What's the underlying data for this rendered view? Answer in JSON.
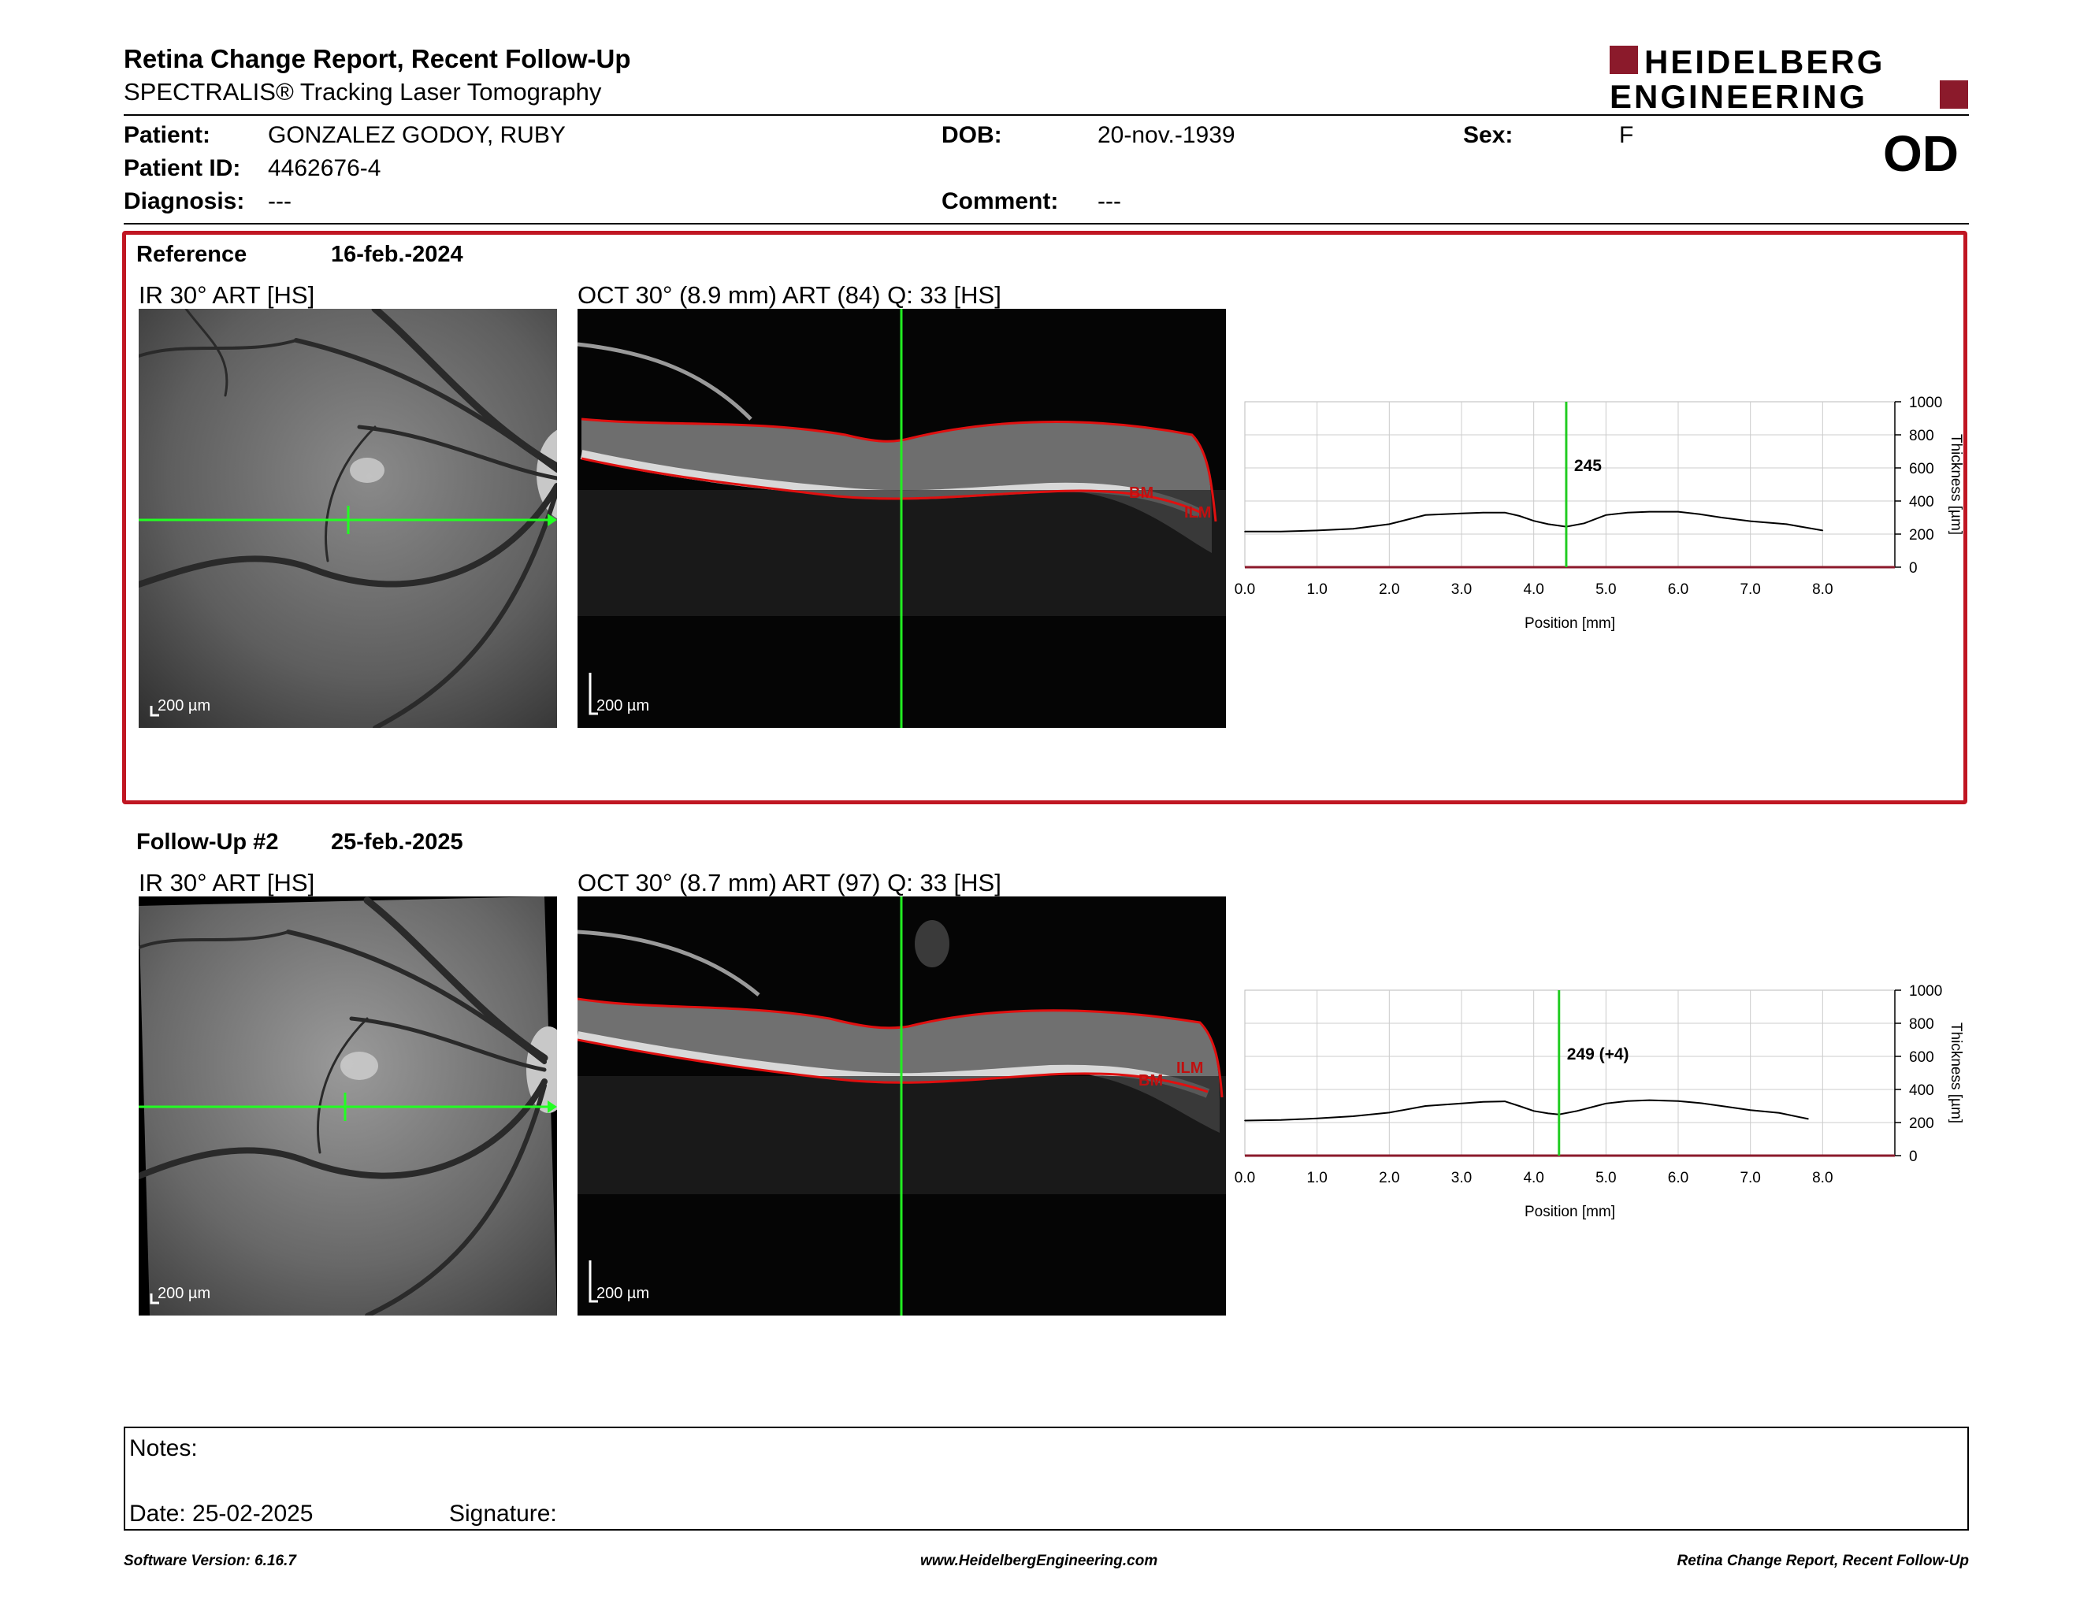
{
  "header": {
    "title": "Retina Change Report, Recent Follow-Up",
    "subtitle": "SPECTRALIS® Tracking Laser Tomography",
    "logo_line1": "HEIDELBERG",
    "logo_line2": "ENGINEERING",
    "brand_color": "#8b1a2b"
  },
  "patient": {
    "patient_label": "Patient:",
    "patient_value": "GONZALEZ GODOY, RUBY",
    "id_label": "Patient ID:",
    "id_value": "4462676-4",
    "diagnosis_label": "Diagnosis:",
    "diagnosis_value": "---",
    "dob_label": "DOB:",
    "dob_value": "20-nov.-1939",
    "comment_label": "Comment:",
    "comment_value": "---",
    "sex_label": "Sex:",
    "sex_value": "F",
    "eye": "OD"
  },
  "reference": {
    "label": "Reference",
    "date": "16-feb.-2024",
    "ir_title": "IR 30° ART [HS]",
    "oct_title": "OCT 30° (8.9 mm) ART (84) Q: 33 [HS]",
    "scale_label": "200 µm",
    "layer_bm": "BM",
    "layer_ilm": "ILM"
  },
  "followup": {
    "label": "Follow-Up #2",
    "date": "25-feb.-2025",
    "ir_title": "IR 30° ART [HS]",
    "oct_title": "OCT 30° (8.7 mm) ART (97) Q: 33 [HS]",
    "scale_label": "200 µm",
    "layer_bm": "BM",
    "layer_ilm": "ILM"
  },
  "chart_data": [
    {
      "type": "line",
      "xlabel": "Position [mm]",
      "ylabel": "Thickness [µm]",
      "xlim": [
        0,
        9
      ],
      "ylim": [
        0,
        1000
      ],
      "x_ticks": [
        "0.0",
        "1.0",
        "2.0",
        "3.0",
        "4.0",
        "5.0",
        "6.0",
        "7.0",
        "8.0"
      ],
      "y_ticks": [
        "0",
        "200",
        "400",
        "600",
        "800",
        "1000"
      ],
      "marker_x": 4.45,
      "marker_label": "245",
      "grid": true,
      "series": [
        {
          "x": [
            0.0,
            0.5,
            1.0,
            1.5,
            2.0,
            2.5,
            3.0,
            3.3,
            3.6,
            3.8,
            4.0,
            4.2,
            4.45,
            4.7,
            5.0,
            5.3,
            5.6,
            6.0,
            6.3,
            6.6,
            7.0,
            7.5,
            8.0
          ],
          "values": [
            215,
            215,
            222,
            232,
            260,
            315,
            325,
            330,
            330,
            310,
            280,
            260,
            245,
            265,
            315,
            330,
            335,
            335,
            320,
            300,
            278,
            260,
            222
          ]
        }
      ]
    },
    {
      "type": "line",
      "xlabel": "Position [mm]",
      "ylabel": "Thickness [µm]",
      "xlim": [
        0,
        9
      ],
      "ylim": [
        0,
        1000
      ],
      "x_ticks": [
        "0.0",
        "1.0",
        "2.0",
        "3.0",
        "4.0",
        "5.0",
        "6.0",
        "7.0",
        "8.0"
      ],
      "y_ticks": [
        "0",
        "200",
        "400",
        "600",
        "800",
        "1000"
      ],
      "marker_x": 4.35,
      "marker_label": "249 (+4)",
      "grid": true,
      "series": [
        {
          "x": [
            0.0,
            0.5,
            1.0,
            1.5,
            2.0,
            2.5,
            3.0,
            3.3,
            3.6,
            3.8,
            4.0,
            4.2,
            4.35,
            4.6,
            5.0,
            5.3,
            5.6,
            6.0,
            6.3,
            6.6,
            7.0,
            7.4,
            7.8
          ],
          "values": [
            212,
            215,
            225,
            238,
            260,
            300,
            315,
            325,
            328,
            300,
            270,
            255,
            249,
            270,
            315,
            330,
            335,
            330,
            318,
            300,
            275,
            258,
            222
          ]
        }
      ]
    }
  ],
  "notes": {
    "notes_label": "Notes:",
    "date_label": "Date: 25-02-2025",
    "signature_label": "Signature:"
  },
  "footer": {
    "software": "Software Version: 6.16.7",
    "url": "www.HeidelbergEngineering.com",
    "report": "Retina Change Report, Recent Follow-Up"
  }
}
